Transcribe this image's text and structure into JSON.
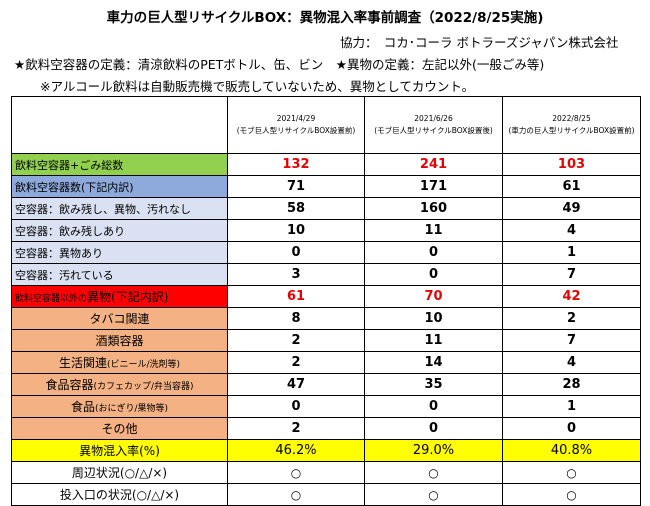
{
  "title": "車力の巨人型リサイクルBOX：異物混入率事前調査（2022/8/25実施)",
  "cooperation": "協力：　コカ･コーラ ボトラーズジャパン株式会社",
  "definitions": "★飲料空容器の定義：清涼飲料のPETボトル、缶、ビン　★異物の定義：左記以外(一般ごみ等)",
  "note": "※アルコール飲料は自動販売機で販売していないため、異物としてカウント。",
  "columns": [
    {
      "date": "2021/4/29",
      "sub": "(モブ巨人型リサイクルBOX設置前)"
    },
    {
      "date": "2021/6/26",
      "sub": "(モブ巨人型リサイクルBOX設置後)"
    },
    {
      "date": "2022/8/25",
      "sub": "(車力の巨人型リサイクルBOX設置前)"
    }
  ],
  "rows": {
    "total": {
      "label": "飲料空容器+ごみ総数",
      "values": [
        "132",
        "241",
        "103"
      ]
    },
    "containers": {
      "label": "飲料空容器数(下記内訳)",
      "values": [
        "71",
        "171",
        "61"
      ]
    },
    "empty_clean": {
      "label": "空容器：飲み残し、異物、汚れなし",
      "values": [
        "58",
        "160",
        "49"
      ]
    },
    "leftover": {
      "label": "空容器：飲み残しあり",
      "values": [
        "10",
        "11",
        "4"
      ]
    },
    "foreign_in": {
      "label": "空容器：異物あり",
      "values": [
        "0",
        "0",
        "1"
      ]
    },
    "dirty": {
      "label": "空容器：汚れている",
      "values": [
        "3",
        "0",
        "7"
      ]
    },
    "foreign": {
      "label_small": "飲料空容器以外の",
      "label_big": "異物(下記内訳)",
      "values": [
        "61",
        "70",
        "42"
      ]
    },
    "tobacco": {
      "label": "タバコ関連",
      "values": [
        "8",
        "10",
        "2"
      ]
    },
    "alcohol": {
      "label": "酒類容器",
      "values": [
        "2",
        "11",
        "7"
      ]
    },
    "daily": {
      "label_main": "生活関連",
      "label_sub": "(ビニール/洗剤等)",
      "values": [
        "2",
        "14",
        "4"
      ]
    },
    "food_containers": {
      "label_main": "食品容器",
      "label_sub": "(カフェカップ/弁当容器)",
      "values": [
        "47",
        "35",
        "28"
      ]
    },
    "food": {
      "label_main": "食品",
      "label_sub": "(おにぎり/果物等)",
      "values": [
        "0",
        "0",
        "1"
      ]
    },
    "other": {
      "label": "その他",
      "values": [
        "2",
        "0",
        "0"
      ]
    },
    "rate": {
      "label": "異物混入率(%)",
      "values": [
        "46.2%",
        "29.0%",
        "40.8%"
      ]
    },
    "surroundings": {
      "label": "周辺状況(○/△/×)",
      "values": [
        "○",
        "○",
        "○"
      ]
    },
    "inlet": {
      "label": "投入口の状況(○/△/×)",
      "values": [
        "○",
        "○",
        "○"
      ]
    }
  },
  "colors": {
    "green": "#92d050",
    "blue": "#8ea9db",
    "light_blue": "#d9e1f2",
    "red": "#ff0000",
    "orange": "#f4b183",
    "yellow": "#ffff00",
    "red_text": "#e60000"
  }
}
